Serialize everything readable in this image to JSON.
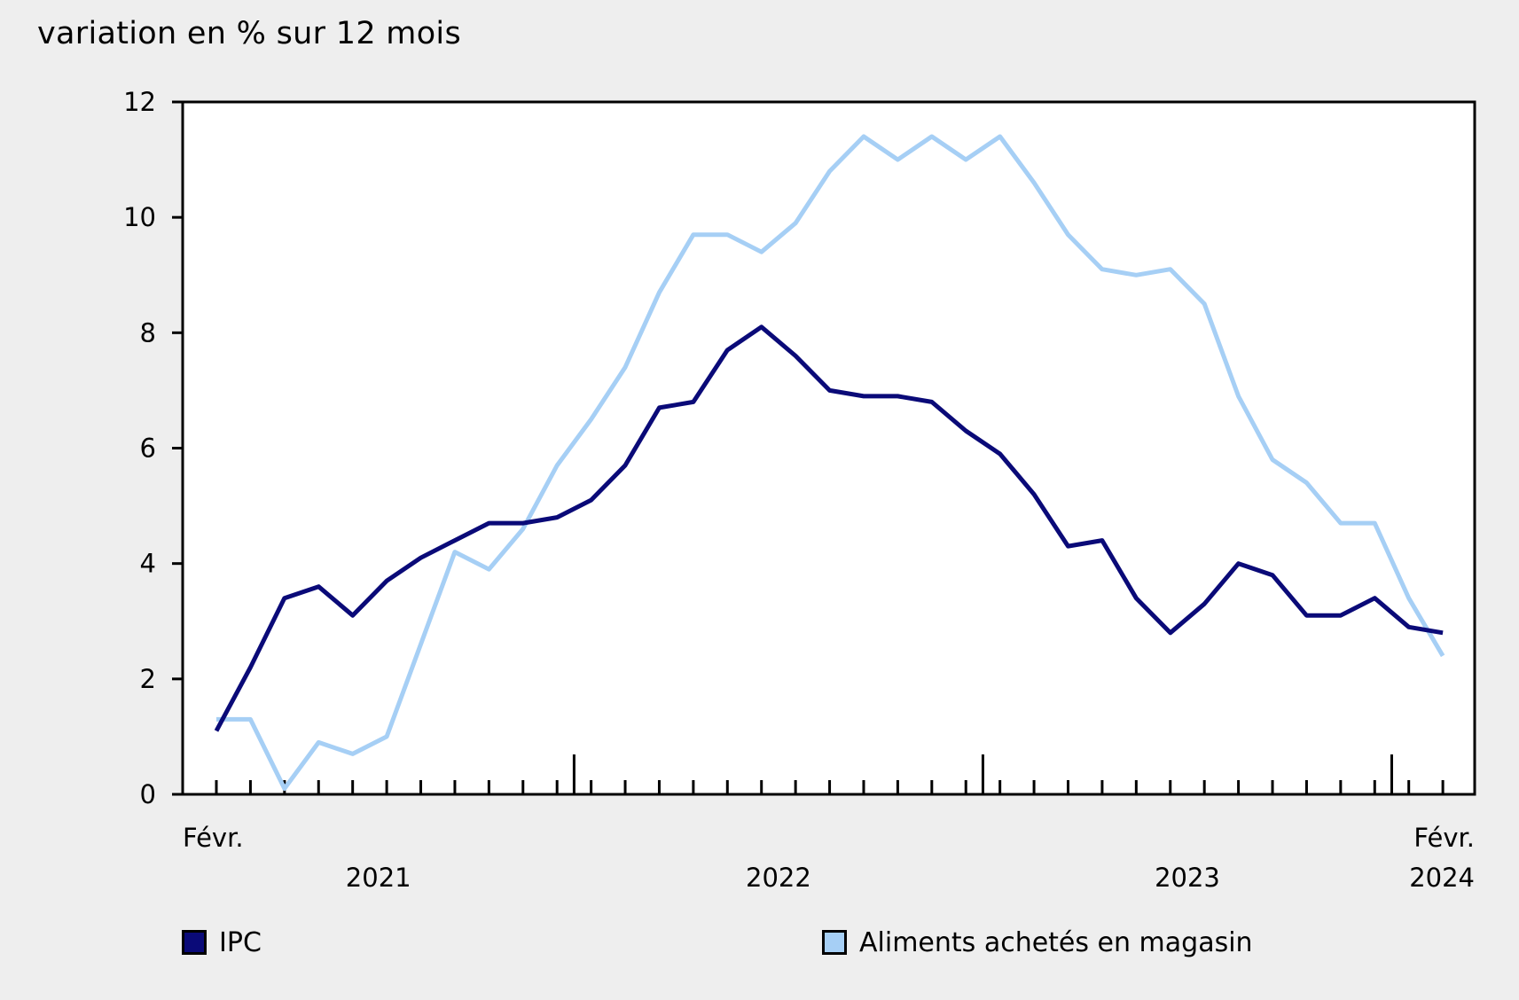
{
  "chart_data": {
    "type": "line",
    "title": "",
    "ylabel": "variation en % sur 12 mois",
    "xlabel": "",
    "ylim": [
      0,
      12
    ],
    "yticks": [
      "0",
      "2",
      "4",
      "6",
      "8",
      "10",
      "12"
    ],
    "x_start_label": "Févr.",
    "x_end_label": "Févr.",
    "year_labels": [
      "2021",
      "2022",
      "2023",
      "2024"
    ],
    "grid": false,
    "legend_position": "bottom",
    "series": [
      {
        "name": "IPC",
        "color": "#0a0a78",
        "values": [
          1.1,
          2.2,
          3.4,
          3.6,
          3.1,
          3.7,
          4.1,
          4.4,
          4.7,
          4.7,
          4.8,
          5.1,
          5.7,
          6.7,
          6.8,
          7.7,
          8.1,
          7.6,
          7.0,
          6.9,
          6.9,
          6.8,
          6.3,
          5.9,
          5.2,
          4.3,
          4.4,
          3.4,
          2.8,
          3.3,
          4.0,
          3.8,
          3.1,
          3.1,
          3.4,
          2.9,
          2.8
        ]
      },
      {
        "name": "Aliments achetés en magasin",
        "color": "#a6cff5",
        "values": [
          1.3,
          1.3,
          0.1,
          0.9,
          0.7,
          1.0,
          2.6,
          4.2,
          3.9,
          4.6,
          5.7,
          6.5,
          7.4,
          8.7,
          9.7,
          9.7,
          9.4,
          9.9,
          10.8,
          11.4,
          11.0,
          11.4,
          11.0,
          11.4,
          10.6,
          9.7,
          9.1,
          9.0,
          9.1,
          8.5,
          6.9,
          5.8,
          5.4,
          4.7,
          4.7,
          3.4,
          2.4
        ]
      }
    ]
  }
}
